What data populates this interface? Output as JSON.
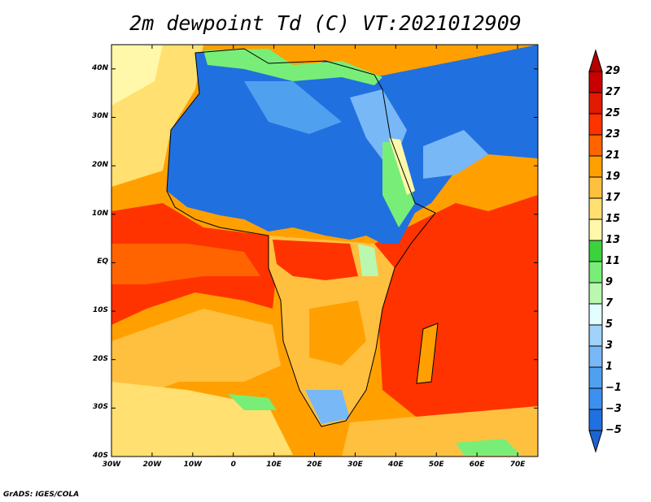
{
  "title": "2m dewpoint Td (C) VT:2021012909",
  "credit": "GrADS: IGES/COLA",
  "map": {
    "lon_range": [
      -30,
      75
    ],
    "lat_range": [
      -40,
      45
    ],
    "lat_labels": [
      "40N",
      "30N",
      "20N",
      "10N",
      "EQ",
      "10S",
      "20S",
      "30S",
      "40S"
    ],
    "lat_values": [
      40,
      30,
      20,
      10,
      0,
      -10,
      -20,
      -30,
      -40
    ],
    "lon_labels": [
      "30W",
      "20W",
      "10W",
      "0",
      "10E",
      "20E",
      "30E",
      "40E",
      "50E",
      "60E",
      "70E"
    ],
    "lon_values": [
      -30,
      -20,
      -10,
      0,
      10,
      20,
      30,
      40,
      50,
      60,
      70
    ]
  },
  "colorbar": {
    "labels": [
      "29",
      "27",
      "25",
      "23",
      "21",
      "19",
      "17",
      "15",
      "13",
      "11",
      "9",
      "7",
      "5",
      "3",
      "1",
      "−1",
      "−3",
      "−5"
    ],
    "colors_top_to_bottom": [
      "#b40000",
      "#c80000",
      "#e21a00",
      "#ff3300",
      "#ff6400",
      "#ffa000",
      "#ffc040",
      "#ffe070",
      "#fff8aa",
      "#3cd23c",
      "#78ee78",
      "#baf8b0",
      "#e0fffe",
      "#a0d2fa",
      "#78b8f6",
      "#50a0f0",
      "#3c90f0",
      "#2070e0",
      "#1e64d0"
    ]
  }
}
